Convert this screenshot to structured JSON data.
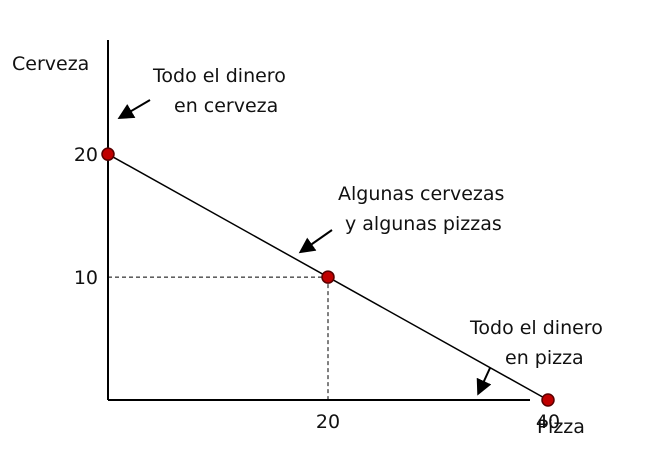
{
  "chart_data": {
    "type": "line",
    "xlabel": "Pizza",
    "ylabel": "Cerveza",
    "xlim": [
      0,
      46
    ],
    "ylim": [
      0,
      24
    ],
    "x_ticks": [
      20,
      40
    ],
    "y_ticks": [
      10,
      20
    ],
    "grid": false,
    "series": [
      {
        "x": [
          0,
          20,
          40
        ],
        "y": [
          20,
          10,
          0
        ]
      }
    ],
    "points": [
      {
        "x": 0,
        "y": 20
      },
      {
        "x": 20,
        "y": 10
      },
      {
        "x": 40,
        "y": 0
      }
    ],
    "guides": [
      {
        "x": 20,
        "y": 10
      }
    ],
    "annotations": [
      {
        "lines": [
          "Todo el dinero",
          "en cerveza"
        ],
        "x": 0,
        "y": 20
      },
      {
        "lines": [
          "Algunas cervezas",
          "y algunas pizzas"
        ],
        "x": 20,
        "y": 10
      },
      {
        "lines": [
          "Todo el dinero",
          "en pizza"
        ],
        "x": 40,
        "y": 0
      }
    ],
    "colors": {
      "line": "#000000",
      "point_fill": "#c00000",
      "point_stroke": "#5a0000"
    }
  }
}
